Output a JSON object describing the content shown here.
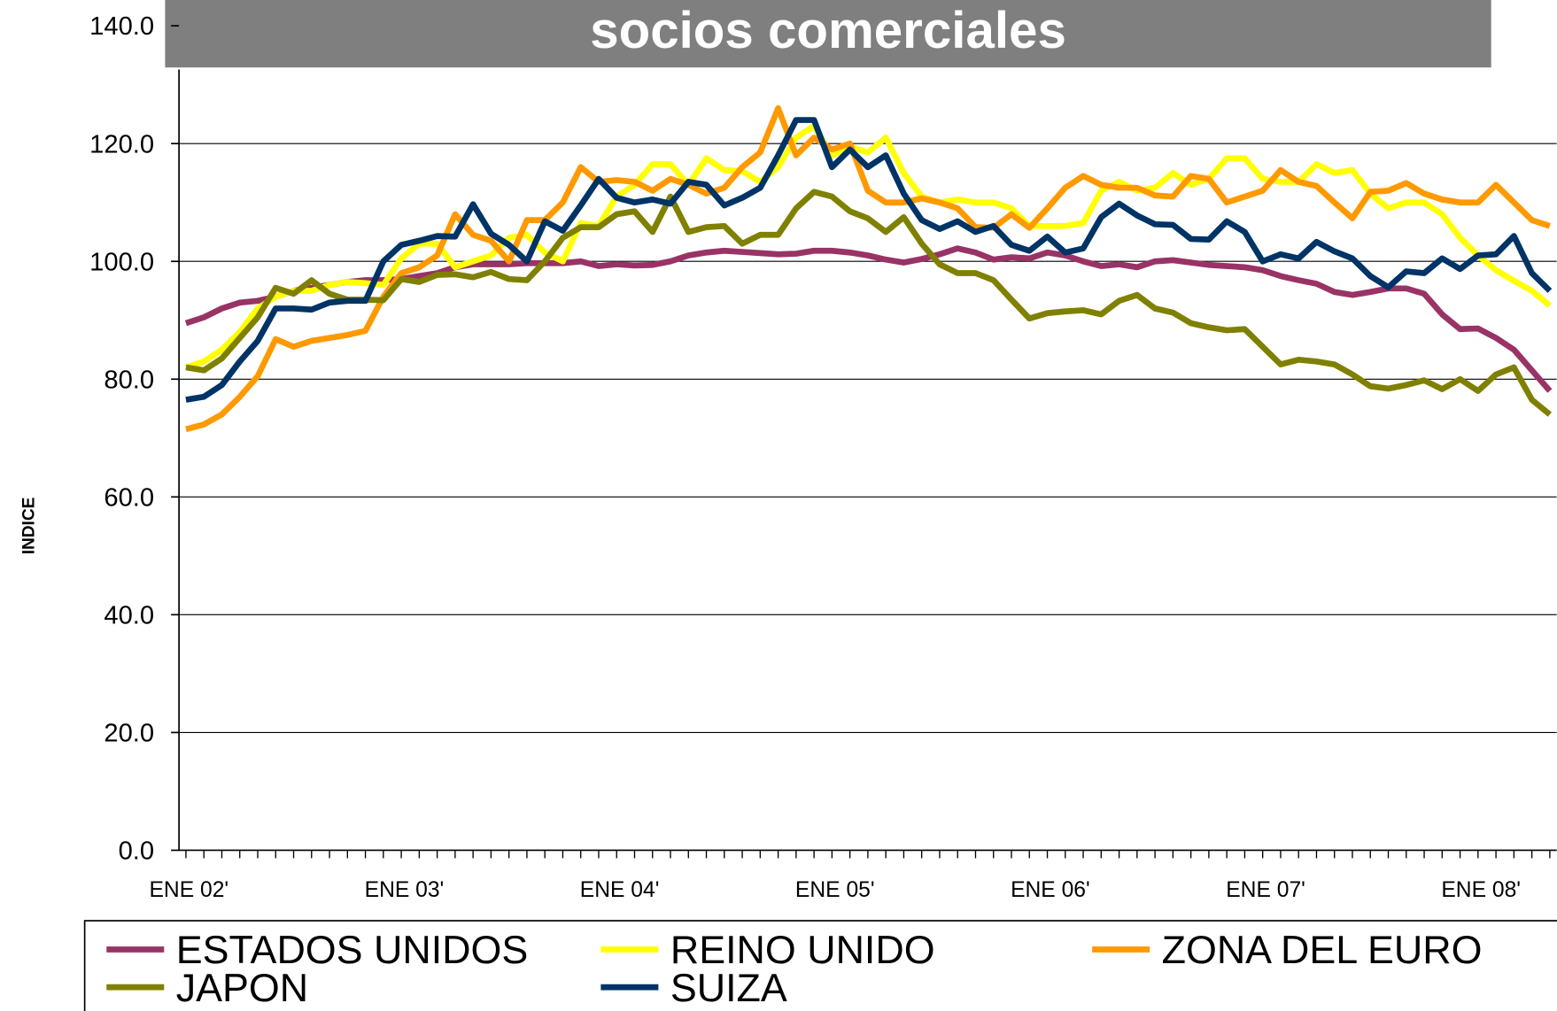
{
  "chart_data": {
    "type": "line",
    "title": "socios comerciales",
    "y_label": "INDICE",
    "categories": [
      "ENE 02'",
      null,
      null,
      null,
      null,
      null,
      null,
      null,
      null,
      null,
      null,
      null,
      "ENE 03'",
      null,
      null,
      null,
      null,
      null,
      null,
      null,
      null,
      null,
      null,
      null,
      "ENE 04'",
      null,
      null,
      null,
      null,
      null,
      null,
      null,
      null,
      null,
      null,
      null,
      "ENE 05'",
      null,
      null,
      null,
      null,
      null,
      null,
      null,
      null,
      null,
      null,
      null,
      "ENE 06'",
      null,
      null,
      null,
      null,
      null,
      null,
      null,
      null,
      null,
      null,
      null,
      "ENE 07'",
      null,
      null,
      null,
      null,
      null,
      null,
      null,
      null,
      null,
      null,
      null,
      "ENE 08'",
      null,
      null,
      null,
      null
    ],
    "ylim": [
      0,
      140
    ],
    "yticks": [
      {
        "value": 0,
        "label": "0.0"
      },
      {
        "value": 20,
        "label": "20.0"
      },
      {
        "value": 40,
        "label": "40.0"
      },
      {
        "value": 60,
        "label": "60.0"
      },
      {
        "value": 80,
        "label": "80.0"
      },
      {
        "value": 100,
        "label": "100.0"
      },
      {
        "value": 120,
        "label": "120.0"
      },
      {
        "value": 140,
        "label": "140.0"
      }
    ],
    "grid": true,
    "legend": "bottom",
    "series": [
      {
        "name": "ESTADOS UNIDOS",
        "color": "#993366",
        "values": [
          89.5,
          90.5,
          92,
          93,
          93.3,
          94,
          95,
          95.5,
          96,
          96.5,
          96.8,
          96.8,
          97,
          97.5,
          98,
          99,
          99.5,
          99.5,
          99.5,
          99.7,
          99.7,
          99.7,
          100,
          99.2,
          99.5,
          99.3,
          99.4,
          100,
          101,
          101.5,
          101.8,
          101.6,
          101.4,
          101.2,
          101.3,
          101.8,
          101.8,
          101.5,
          101,
          100.3,
          99.8,
          100.4,
          101.2,
          102.2,
          101.5,
          100.3,
          100.7,
          100.5,
          101.5,
          101,
          100,
          99.2,
          99.5,
          99,
          100,
          100.2,
          99.8,
          99.4,
          99.2,
          99,
          98.5,
          97.5,
          96.8,
          96.2,
          94.8,
          94.3,
          94.8,
          95.4,
          95.4,
          94.5,
          91,
          88.5,
          88.6,
          87,
          85,
          81.5,
          78
        ]
      },
      {
        "name": "REINO UNIDO",
        "color": "#ffff00",
        "values": [
          82,
          83,
          85,
          88,
          92,
          94,
          95,
          95,
          96,
          96.5,
          96.3,
          96,
          100.5,
          103,
          103,
          99,
          100,
          101,
          104,
          104.5,
          101.5,
          100,
          106.5,
          106,
          111,
          113,
          116.5,
          116.5,
          113,
          117.5,
          115.5,
          115.3,
          113.5,
          116,
          121,
          123,
          118,
          119.5,
          118.5,
          121,
          115,
          111,
          110,
          110.5,
          110,
          110,
          109,
          106,
          106,
          106,
          106.5,
          112,
          113.5,
          112,
          112.5,
          115,
          113,
          114,
          117.5,
          117.5,
          114,
          113.5,
          113.5,
          116.5,
          115,
          115.5,
          111.5,
          109,
          110,
          110,
          108,
          104,
          101,
          98.5,
          96.7,
          95,
          92.5
        ]
      },
      {
        "name": "ZONA DEL EURO",
        "color": "#ff9900",
        "values": [
          71.5,
          72.3,
          74,
          77,
          80.5,
          86.8,
          85.5,
          86.5,
          87,
          87.5,
          88.2,
          94,
          98,
          99,
          101,
          108,
          104.5,
          103.5,
          100,
          107,
          107,
          110,
          116,
          113.5,
          113.8,
          113.5,
          112,
          114,
          113,
          111.5,
          112.5,
          116,
          118.5,
          126,
          118,
          121,
          119,
          120,
          112,
          110,
          110,
          110.7,
          110,
          109,
          105.8,
          105.7,
          108,
          105.7,
          109,
          112.5,
          114.5,
          113,
          112.5,
          112.5,
          111.2,
          111,
          114.5,
          114,
          110,
          111,
          112,
          115.5,
          113.5,
          112.8,
          110,
          107.3,
          111.8,
          112,
          113.3,
          111.5,
          110.5,
          110,
          110,
          113,
          110,
          107,
          106
        ]
      },
      {
        "name": "JAPON",
        "color": "#808000",
        "values": [
          82,
          81.5,
          83.5,
          87,
          90.5,
          95.5,
          94.5,
          96.8,
          94.5,
          93.5,
          93.5,
          93.4,
          97,
          96.5,
          97.7,
          97.8,
          97.3,
          98.2,
          97,
          96.8,
          100,
          104,
          105.8,
          105.8,
          108,
          108.5,
          105,
          111,
          105,
          105.8,
          106,
          103,
          104.5,
          104.5,
          109,
          111.8,
          111,
          108.5,
          107.3,
          105,
          107.5,
          103,
          99.5,
          98,
          98,
          96.8,
          93.5,
          90.3,
          91.2,
          91.5,
          91.7,
          91,
          93.3,
          94.3,
          92,
          91.3,
          89.5,
          88.8,
          88.3,
          88.5,
          85.5,
          82.5,
          83.3,
          83,
          82.5,
          80.8,
          78.8,
          78.4,
          79,
          79.8,
          78.3,
          80,
          78,
          80.8,
          82,
          76.5,
          74
        ]
      },
      {
        "name": "SUIZA",
        "color": "#003366",
        "values": [
          76.5,
          77,
          79,
          83,
          86.5,
          92,
          92,
          91.8,
          93,
          93.3,
          93.3,
          100,
          102.8,
          103.5,
          104.3,
          104.2,
          109.7,
          104.7,
          102.8,
          100,
          106.8,
          105.2,
          109.5,
          114,
          110.8,
          110,
          110.5,
          109.8,
          113.5,
          113,
          109.5,
          110.8,
          112.5,
          118,
          124,
          124,
          116,
          119,
          116,
          118,
          111.5,
          107,
          105.5,
          106.8,
          105,
          106,
          102.8,
          101.8,
          104.2,
          101.5,
          102.2,
          107.5,
          109.8,
          107.8,
          106.3,
          106.2,
          103.8,
          103.7,
          106.8,
          105,
          100,
          101.2,
          100.5,
          103.3,
          101.7,
          100.5,
          97.5,
          95.6,
          98.3,
          98,
          100.5,
          98.7,
          101,
          101.2,
          104.3,
          98,
          95
        ]
      }
    ]
  }
}
